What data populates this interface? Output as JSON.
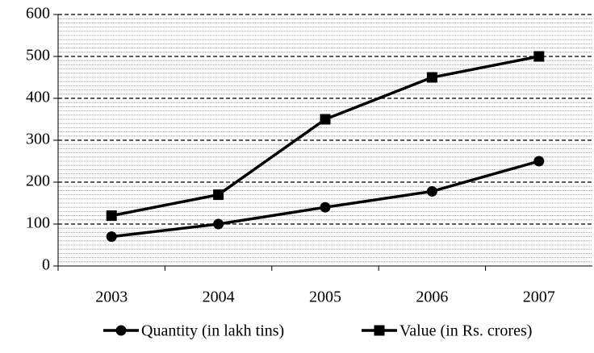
{
  "chart_data": {
    "type": "line",
    "categories": [
      "2003",
      "2004",
      "2005",
      "2006",
      "2007"
    ],
    "series": [
      {
        "name": "Quantity (in lakh tins)",
        "color": "#000000",
        "marker": "circle",
        "values": [
          70,
          100,
          140,
          178,
          250
        ]
      },
      {
        "name": "Value (in Rs. crores)",
        "color": "#000000",
        "marker": "square",
        "values": [
          120,
          170,
          350,
          450,
          500
        ]
      }
    ],
    "ylim": [
      0,
      600
    ],
    "yticks": [
      0,
      100,
      200,
      300,
      400,
      500,
      600
    ],
    "grid": true,
    "minor_grid": true,
    "legend": "bottom"
  }
}
